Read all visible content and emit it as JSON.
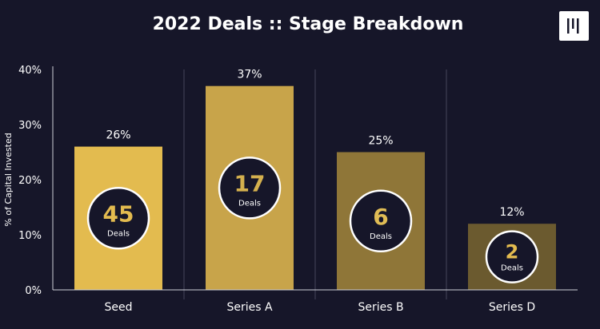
{
  "title": "2022 Deals :: Stage Breakdown",
  "logo_icon": "brand-logo-icon",
  "colors": {
    "background": "#161629",
    "text": "#ffffff",
    "bars": [
      "#e3bb4f",
      "#c8a44a",
      "#8f7638",
      "#6b5a2f"
    ],
    "badge_fill": "#161629",
    "badge_border": "#ffffff",
    "badge_value": [
      "#e3bb4f",
      "#d4b04e",
      "#e0bc55",
      "#e3bb4f"
    ]
  },
  "chart_data": {
    "type": "bar",
    "title": "2022 Deals :: Stage Breakdown",
    "xlabel": "",
    "ylabel": "% of Capital Invested",
    "categories": [
      "Seed",
      "Series A",
      "Series B",
      "Series D"
    ],
    "values": [
      26,
      37,
      25,
      12
    ],
    "value_labels": [
      "26%",
      "37%",
      "25%",
      "12%"
    ],
    "deals": [
      45,
      17,
      6,
      2
    ],
    "deals_label": "Deals",
    "ylim": [
      0,
      40
    ],
    "yticks": [
      0,
      10,
      20,
      30,
      40
    ],
    "ytick_labels": [
      "0%",
      "10%",
      "20%",
      "30%",
      "40%"
    ],
    "grid": false,
    "legend": "none"
  }
}
